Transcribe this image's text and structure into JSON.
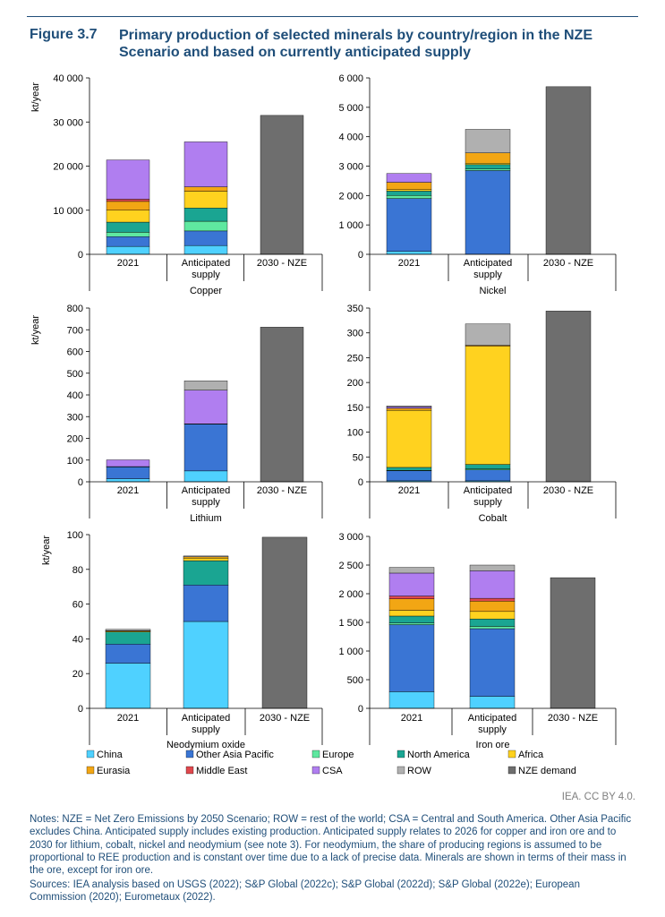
{
  "figure": {
    "number": "Figure 3.7",
    "title": "Primary production of selected minerals by country/region in the NZE Scenario and based on currently anticipated supply"
  },
  "credit": "IEA. CC BY 4.0.",
  "notes": "Notes: NZE = Net Zero Emissions by 2050 Scenario; ROW = rest of the world; CSA = Central and South America. Other Asia Pacific excludes China. Anticipated supply includes existing production. Anticipated supply relates to 2026 for copper and iron ore and to 2030 for lithium, cobalt, nickel and neodymium (see note 3). For neodymium, the share of producing regions is assumed to be proportional to REE production and is constant over time due to a lack of precise data. Minerals are shown in terms of their mass in the ore, except for iron ore.",
  "sources": "Sources: IEA analysis based on USGS (2022); S&P Global (2022c); S&P Global (2022d); S&P Global (2022e); European Commission (2020); Eurometaux (2022).",
  "colors": {
    "China": "#4fd1ff",
    "Other Asia Pacific": "#3a75d4",
    "Europe": "#5fe8a0",
    "North America": "#1aa592",
    "Africa": "#ffd21f",
    "Eurasia": "#f2a614",
    "Middle East": "#e0484d",
    "CSA": "#b07ef0",
    "ROW": "#b0b0b0",
    "NZE demand": "#6e6e6e"
  },
  "legend": [
    "China",
    "Other Asia Pacific",
    "Europe",
    "North America",
    "Africa",
    "Eurasia",
    "Middle East",
    "CSA",
    "ROW",
    "NZE demand"
  ],
  "chart_data": [
    {
      "type": "bar",
      "stacked": true,
      "title": "Copper",
      "ylabel": "kt/year",
      "categories": [
        "2021",
        "Anticipated supply",
        "2030 - NZE"
      ],
      "ylim": [
        0,
        40000
      ],
      "yticks": [
        0,
        10000,
        20000,
        30000,
        40000
      ],
      "yticklabels": [
        "0",
        "10 000",
        "20 000",
        "30 000",
        "40 000"
      ],
      "series": [
        {
          "name": "China",
          "values": [
            1800,
            2000,
            0
          ]
        },
        {
          "name": "Other Asia Pacific",
          "values": [
            2200,
            3300,
            0
          ]
        },
        {
          "name": "Europe",
          "values": [
            1000,
            2200,
            0
          ]
        },
        {
          "name": "North America",
          "values": [
            2300,
            3000,
            0
          ]
        },
        {
          "name": "Africa",
          "values": [
            2700,
            3800,
            0
          ]
        },
        {
          "name": "Eurasia",
          "values": [
            2000,
            1000,
            0
          ]
        },
        {
          "name": "Middle East",
          "values": [
            500,
            0,
            0
          ]
        },
        {
          "name": "CSA",
          "values": [
            8900,
            10200,
            0
          ]
        },
        {
          "name": "ROW",
          "values": [
            0,
            0,
            0
          ]
        },
        {
          "name": "NZE demand",
          "values": [
            0,
            0,
            31500
          ]
        }
      ]
    },
    {
      "type": "bar",
      "stacked": true,
      "title": "Nickel",
      "ylabel": "",
      "categories": [
        "2021",
        "Anticipated supply",
        "2030 - NZE"
      ],
      "ylim": [
        0,
        6000
      ],
      "yticks": [
        0,
        1000,
        2000,
        3000,
        4000,
        5000,
        6000
      ],
      "yticklabels": [
        "0",
        "1 000",
        "2 000",
        "3 000",
        "4 000",
        "5 000",
        "6 000"
      ],
      "series": [
        {
          "name": "China",
          "values": [
            100,
            0,
            0
          ]
        },
        {
          "name": "Other Asia Pacific",
          "values": [
            1800,
            2850,
            0
          ]
        },
        {
          "name": "Europe",
          "values": [
            100,
            50,
            0
          ]
        },
        {
          "name": "North America",
          "values": [
            150,
            150,
            0
          ]
        },
        {
          "name": "Africa",
          "values": [
            50,
            50,
            0
          ]
        },
        {
          "name": "Eurasia",
          "values": [
            250,
            350,
            0
          ]
        },
        {
          "name": "Middle East",
          "values": [
            0,
            0,
            0
          ]
        },
        {
          "name": "CSA",
          "values": [
            300,
            0,
            0
          ]
        },
        {
          "name": "ROW",
          "values": [
            0,
            800,
            0
          ]
        },
        {
          "name": "NZE demand",
          "values": [
            0,
            0,
            5700
          ]
        }
      ]
    },
    {
      "type": "bar",
      "stacked": true,
      "title": "Lithium",
      "ylabel": "kt/year",
      "categories": [
        "2021",
        "Anticipated supply",
        "2030 - NZE"
      ],
      "ylim": [
        0,
        800
      ],
      "yticks": [
        0,
        100,
        200,
        300,
        400,
        500,
        600,
        700,
        800
      ],
      "yticklabels": [
        "0",
        "100",
        "200",
        "300",
        "400",
        "500",
        "600",
        "700",
        "800"
      ],
      "series": [
        {
          "name": "China",
          "values": [
            14,
            50,
            0
          ]
        },
        {
          "name": "Other Asia Pacific",
          "values": [
            55,
            215,
            0
          ]
        },
        {
          "name": "Europe",
          "values": [
            0,
            0,
            0
          ]
        },
        {
          "name": "North America",
          "values": [
            1,
            2,
            0
          ]
        },
        {
          "name": "Africa",
          "values": [
            0,
            0,
            0
          ]
        },
        {
          "name": "Eurasia",
          "values": [
            0,
            0,
            0
          ]
        },
        {
          "name": "Middle East",
          "values": [
            0,
            0,
            0
          ]
        },
        {
          "name": "CSA",
          "values": [
            31,
            155,
            0
          ]
        },
        {
          "name": "ROW",
          "values": [
            0,
            43,
            0
          ]
        },
        {
          "name": "NZE demand",
          "values": [
            0,
            0,
            712
          ]
        }
      ]
    },
    {
      "type": "bar",
      "stacked": true,
      "title": "Cobalt",
      "ylabel": "",
      "categories": [
        "2021",
        "Anticipated supply",
        "2030 - NZE"
      ],
      "ylim": [
        0,
        350
      ],
      "yticks": [
        0,
        50,
        100,
        150,
        200,
        250,
        300,
        350
      ],
      "yticklabels": [
        "0",
        "50",
        "100",
        "150",
        "200",
        "250",
        "300",
        "350"
      ],
      "series": [
        {
          "name": "China",
          "values": [
            2,
            2,
            0
          ]
        },
        {
          "name": "Other Asia Pacific",
          "values": [
            20,
            22,
            0
          ]
        },
        {
          "name": "Europe",
          "values": [
            1,
            2,
            0
          ]
        },
        {
          "name": "North America",
          "values": [
            6,
            9,
            0
          ]
        },
        {
          "name": "Africa",
          "values": [
            115,
            238,
            0
          ]
        },
        {
          "name": "Eurasia",
          "values": [
            4,
            2,
            0
          ]
        },
        {
          "name": "Middle East",
          "values": [
            0,
            0,
            0
          ]
        },
        {
          "name": "CSA",
          "values": [
            3,
            0,
            0
          ]
        },
        {
          "name": "ROW",
          "values": [
            2,
            43,
            0
          ]
        },
        {
          "name": "NZE demand",
          "values": [
            0,
            0,
            344
          ]
        }
      ]
    },
    {
      "type": "bar",
      "stacked": true,
      "title": "Neodymium oxide",
      "ylabel": "kt/year",
      "categories": [
        "2021",
        "Anticipated supply",
        "2030 - NZE"
      ],
      "ylim": [
        0,
        100
      ],
      "yticks": [
        0,
        20,
        40,
        60,
        80,
        100
      ],
      "yticklabels": [
        "0",
        "20",
        "40",
        "60",
        "80",
        "100"
      ],
      "series": [
        {
          "name": "China",
          "values": [
            26,
            50,
            0
          ]
        },
        {
          "name": "Other Asia Pacific",
          "values": [
            11,
            21,
            0
          ]
        },
        {
          "name": "Europe",
          "values": [
            0,
            0,
            0
          ]
        },
        {
          "name": "North America",
          "values": [
            7,
            14,
            0
          ]
        },
        {
          "name": "Africa",
          "values": [
            0.5,
            1.5,
            0
          ]
        },
        {
          "name": "Eurasia",
          "values": [
            0.2,
            0.7,
            0
          ]
        },
        {
          "name": "Middle East",
          "values": [
            0,
            0,
            0
          ]
        },
        {
          "name": "CSA",
          "values": [
            0,
            0,
            0
          ]
        },
        {
          "name": "ROW",
          "values": [
            0.8,
            0.5,
            0
          ]
        },
        {
          "name": "NZE demand",
          "values": [
            0,
            0,
            98.5
          ]
        }
      ]
    },
    {
      "type": "bar",
      "stacked": true,
      "title": "Iron ore",
      "ylabel": "",
      "categories": [
        "2021",
        "Anticipated supply",
        "2030 - NZE"
      ],
      "ylim": [
        0,
        3000
      ],
      "yticks": [
        0,
        500,
        1000,
        1500,
        2000,
        2500,
        3000
      ],
      "yticklabels": [
        "0",
        "500",
        "1 000",
        "1 500",
        "2 000",
        "2 500",
        "3 000"
      ],
      "series": [
        {
          "name": "China",
          "values": [
            290,
            210,
            0
          ]
        },
        {
          "name": "Other Asia Pacific",
          "values": [
            1170,
            1180,
            0
          ]
        },
        {
          "name": "Europe",
          "values": [
            30,
            40,
            0
          ]
        },
        {
          "name": "North America",
          "values": [
            120,
            130,
            0
          ]
        },
        {
          "name": "Africa",
          "values": [
            100,
            130,
            0
          ]
        },
        {
          "name": "Eurasia",
          "values": [
            200,
            180,
            0
          ]
        },
        {
          "name": "Middle East",
          "values": [
            50,
            50,
            0
          ]
        },
        {
          "name": "CSA",
          "values": [
            400,
            480,
            0
          ]
        },
        {
          "name": "ROW",
          "values": [
            100,
            100,
            0
          ]
        },
        {
          "name": "NZE demand",
          "values": [
            0,
            0,
            2280
          ]
        }
      ]
    }
  ]
}
